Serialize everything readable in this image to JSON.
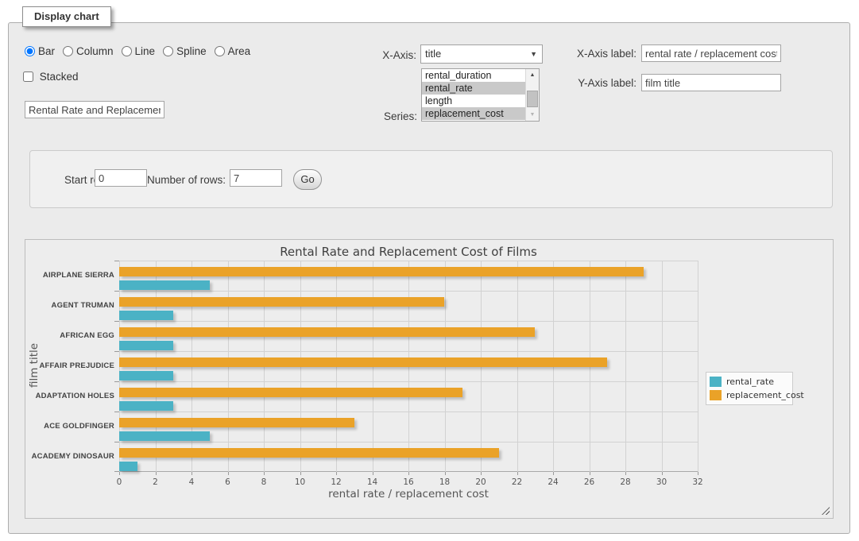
{
  "panel": {
    "legend": "Display chart"
  },
  "form": {
    "type_options": [
      {
        "label": "Bar",
        "checked": true
      },
      {
        "label": "Column",
        "checked": false
      },
      {
        "label": "Line",
        "checked": false
      },
      {
        "label": "Spline",
        "checked": false
      },
      {
        "label": "Area",
        "checked": false
      }
    ],
    "stacked": {
      "label": "Stacked",
      "checked": false
    },
    "title_input_value": "Rental Rate and Replacement Cost of Films",
    "x_axis": {
      "label": "X-Axis:",
      "selected_value": "title"
    },
    "series": {
      "label": "Series:",
      "options": [
        {
          "label": "rental_duration",
          "selected": false
        },
        {
          "label": "rental_rate",
          "selected": true
        },
        {
          "label": "length",
          "selected": false
        },
        {
          "label": "replacement_cost",
          "selected": true
        }
      ]
    },
    "x_axis_label": {
      "label": "X-Axis label:",
      "value": "rental rate / replacement cost"
    },
    "y_axis_label": {
      "label": "Y-Axis label:",
      "value": "film title"
    }
  },
  "rows_panel": {
    "start_row_label": "Start row:",
    "start_row_value": "0",
    "num_rows_label": "Number of rows:",
    "num_rows_value": "7",
    "go_label": "Go"
  },
  "chart_data": {
    "type": "bar",
    "orientation": "horizontal",
    "title": "Rental Rate and Replacement Cost of Films",
    "xlabel": "rental rate / replacement cost",
    "ylabel": "film title",
    "categories": [
      "AIRPLANE SIERRA",
      "AGENT TRUMAN",
      "AFRICAN EGG",
      "AFFAIR PREJUDICE",
      "ADAPTATION HOLES",
      "ACE GOLDFINGER",
      "ACADEMY DINOSAUR"
    ],
    "series": [
      {
        "name": "rental_rate",
        "color": "#4bb2c5",
        "values": [
          4.99,
          2.99,
          2.99,
          2.99,
          2.99,
          4.99,
          0.99
        ]
      },
      {
        "name": "replacement_cost",
        "color": "#EAA228",
        "values": [
          28.99,
          17.99,
          22.99,
          26.99,
          18.99,
          12.99,
          20.99
        ]
      }
    ],
    "xlim": [
      0,
      32
    ],
    "xticks": [
      0,
      2,
      4,
      6,
      8,
      10,
      12,
      14,
      16,
      18,
      20,
      22,
      24,
      26,
      28,
      30,
      32
    ],
    "grid": true,
    "legend_position": "right"
  }
}
